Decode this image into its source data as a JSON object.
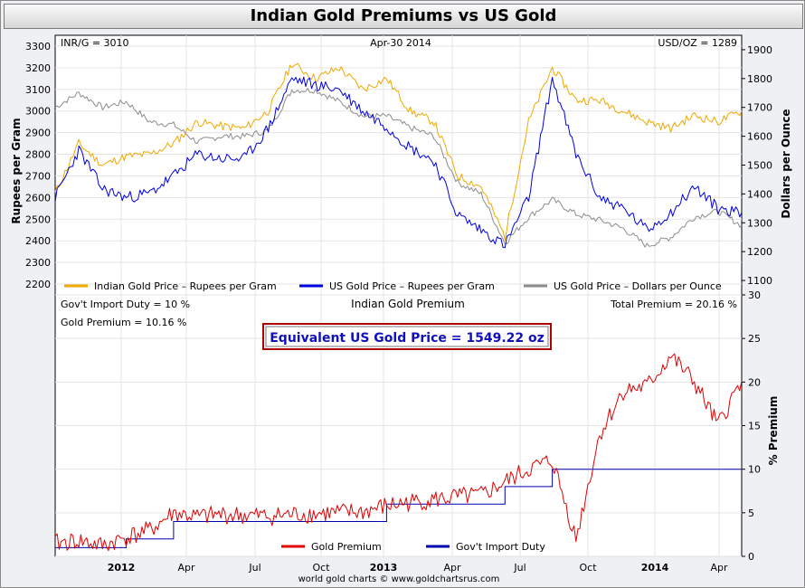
{
  "title": "Indian Gold Premiums vs US Gold",
  "footer": "world gold charts © www.goldchartsrus.com",
  "top": {
    "header_left": "INR/G = 3010",
    "header_center": "Apr-30  2014",
    "header_right": "USD/OZ = 1289",
    "ylabel_left": "Rupees per Gram",
    "ylabel_right": "Dollars per Ounce",
    "left_ticks": [
      "2200",
      "2300",
      "2400",
      "2500",
      "2600",
      "2700",
      "2800",
      "2900",
      "3000",
      "3100",
      "3200",
      "3300"
    ],
    "right_ticks": [
      "1100",
      "1200",
      "1300",
      "1400",
      "1500",
      "1600",
      "1700",
      "1800",
      "1900"
    ],
    "legend": [
      {
        "label": "Indian Gold Price – Rupees per Gram",
        "color": "#f0a800"
      },
      {
        "label": "US Gold Price – Rupees per Gram",
        "color": "#0000e0"
      },
      {
        "label": "US Gold Price – Dollars per Ounce",
        "color": "#8c8c8c"
      }
    ]
  },
  "bottom": {
    "header_left": "Gov't Import Duty = 10 %",
    "header_sub": "Gold Premium = 10.16 %",
    "header_center": "Indian Gold Premium",
    "header_right": "Total Premium = 20.16 %",
    "box_text": "Equivalent US Gold Price = 1549.22 oz",
    "ylabel_right": "% Premium",
    "right_ticks": [
      "0",
      "5",
      "10",
      "15",
      "20",
      "25",
      "30"
    ],
    "legend": [
      {
        "label": "Gold Premium",
        "color": "#e00000"
      },
      {
        "label": "Gov't Import Duty",
        "color": "#0000b0"
      }
    ]
  },
  "x_ticks": [
    "2012",
    "Apr",
    "Jul",
    "Oct",
    "2013",
    "Apr",
    "Jul",
    "Oct",
    "2014",
    "Apr"
  ],
  "chart_data": [
    {
      "type": "line",
      "title": "",
      "ylabel": "Rupees per Gram",
      "y2label": "Dollars per Ounce",
      "ylim": [
        2150,
        3350
      ],
      "y2lim": [
        1050,
        1950
      ],
      "x": [
        "2011-11",
        "2011-12",
        "2012-01",
        "2012-02",
        "2012-03",
        "2012-04",
        "2012-05",
        "2012-06",
        "2012-07",
        "2012-08",
        "2012-09",
        "2012-10",
        "2012-11",
        "2012-12",
        "2013-01",
        "2013-02",
        "2013-03",
        "2013-04",
        "2013-05",
        "2013-06",
        "2013-07",
        "2013-08",
        "2013-09",
        "2013-10",
        "2013-11",
        "2013-12",
        "2014-01",
        "2014-02",
        "2014-03",
        "2014-04"
      ],
      "series": [
        {
          "name": "Indian Gold Price – Rupees per Gram",
          "axis": "left",
          "color": "#f0a800",
          "values": [
            2620,
            2850,
            2750,
            2790,
            2800,
            2850,
            2950,
            2930,
            2920,
            3000,
            3220,
            3150,
            3200,
            3100,
            3150,
            3000,
            2950,
            2700,
            2650,
            2420,
            2950,
            3200,
            3050,
            3050,
            3000,
            2950,
            2920,
            2980,
            2950,
            3000
          ]
        },
        {
          "name": "US Gold Price – Rupees per Gram",
          "axis": "left",
          "color": "#0000e0",
          "values": [
            2600,
            2820,
            2640,
            2600,
            2620,
            2700,
            2800,
            2780,
            2780,
            2920,
            3150,
            3120,
            3100,
            3000,
            2930,
            2830,
            2770,
            2520,
            2450,
            2380,
            2600,
            3150,
            2800,
            2600,
            2550,
            2450,
            2530,
            2650,
            2550,
            2530
          ]
        },
        {
          "name": "US Gold Price – Dollars per Ounce",
          "axis": "right",
          "color": "#8c8c8c",
          "values": [
            1700,
            1750,
            1700,
            1720,
            1650,
            1640,
            1580,
            1600,
            1600,
            1620,
            1760,
            1760,
            1720,
            1670,
            1670,
            1630,
            1600,
            1440,
            1400,
            1230,
            1320,
            1380,
            1330,
            1310,
            1280,
            1220,
            1250,
            1320,
            1340,
            1290
          ]
        }
      ]
    },
    {
      "type": "line",
      "title": "Indian Gold Premium",
      "ylabel": "% Premium",
      "ylim": [
        0,
        30
      ],
      "x": [
        "2011-11",
        "2011-12",
        "2012-01",
        "2012-02",
        "2012-03",
        "2012-04",
        "2012-05",
        "2012-06",
        "2012-07",
        "2012-08",
        "2012-09",
        "2012-10",
        "2012-11",
        "2012-12",
        "2013-01",
        "2013-02",
        "2013-03",
        "2013-04",
        "2013-05",
        "2013-06",
        "2013-07",
        "2013-08",
        "2013-09",
        "2013-10",
        "2013-11",
        "2013-12",
        "2014-01",
        "2014-02",
        "2014-03",
        "2014-04"
      ],
      "series": [
        {
          "name": "Gold Premium",
          "color": "#e00000",
          "values": [
            1.5,
            1.8,
            1.2,
            2.2,
            3.0,
            5.0,
            4.5,
            4.8,
            4.7,
            4.6,
            4.8,
            4.9,
            5.0,
            5.1,
            5.8,
            6.2,
            6.5,
            6.8,
            7.0,
            8.5,
            10.0,
            11.0,
            2.0,
            14.0,
            19.0,
            19.5,
            23.0,
            20.0,
            15.0,
            20.16
          ]
        },
        {
          "name": "Gov't Import Duty",
          "color": "#0000b0",
          "values": [
            1.0,
            1.0,
            1.0,
            2.0,
            2.0,
            4.0,
            4.0,
            4.0,
            4.0,
            4.0,
            4.0,
            4.0,
            4.0,
            4.0,
            6.0,
            6.0,
            6.0,
            6.0,
            6.0,
            8.0,
            8.0,
            10.0,
            10.0,
            10.0,
            10.0,
            10.0,
            10.0,
            10.0,
            10.0,
            10.0
          ]
        }
      ]
    }
  ]
}
